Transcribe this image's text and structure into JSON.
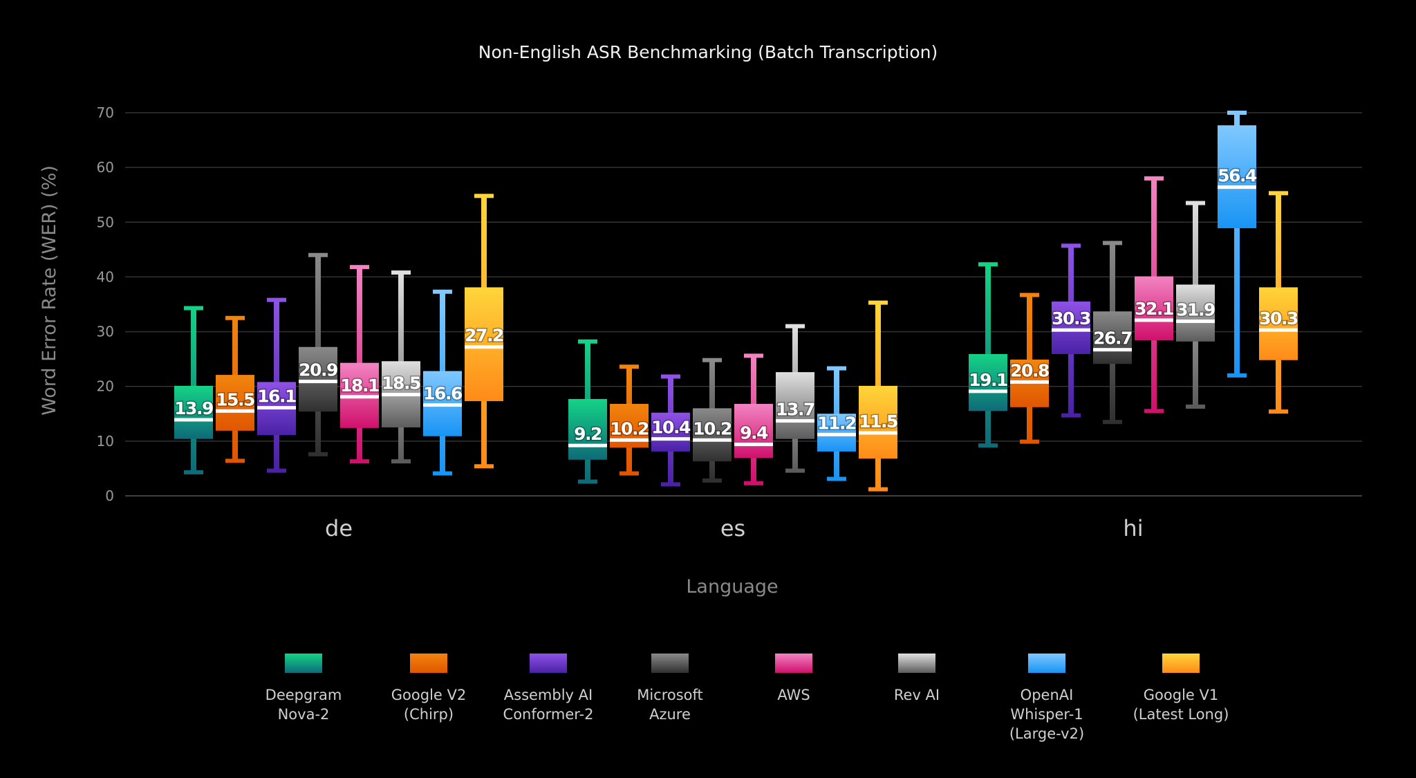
{
  "chart_data": {
    "type": "boxplot",
    "title": "Non-English ASR Benchmarking (Batch Transcription)",
    "xlabel": "Language",
    "ylabel": "Word Error Rate (WER) (%)",
    "ylim": [
      0,
      70
    ],
    "yticks": [
      0,
      10,
      20,
      30,
      40,
      50,
      60,
      70
    ],
    "grid": true,
    "legend_position": "bottom",
    "categories": [
      "de",
      "es",
      "hi"
    ],
    "series": [
      {
        "name": "Deepgram Nova-2",
        "legend_lines": [
          "Deepgram",
          "Nova-2"
        ],
        "colors": [
          "#14d386",
          "#0e6b78"
        ],
        "boxes": [
          {
            "low": 4.3,
            "q1": 10.4,
            "median": 13.9,
            "q3": 20.1,
            "high": 34.3
          },
          {
            "low": 2.6,
            "q1": 6.6,
            "median": 9.2,
            "q3": 17.7,
            "high": 28.2
          },
          {
            "low": 9.2,
            "q1": 15.5,
            "median": 19.1,
            "q3": 25.9,
            "high": 42.3
          }
        ]
      },
      {
        "name": "Google V2 (Chirp)",
        "legend_lines": [
          "Google V2",
          "(Chirp)"
        ],
        "colors": [
          "#f2840e",
          "#e05600"
        ],
        "boxes": [
          {
            "low": 6.4,
            "q1": 11.9,
            "median": 15.5,
            "q3": 22.1,
            "high": 32.5
          },
          {
            "low": 4.1,
            "q1": 8.8,
            "median": 10.2,
            "q3": 16.8,
            "high": 23.6
          },
          {
            "low": 9.9,
            "q1": 16.2,
            "median": 20.8,
            "q3": 24.9,
            "high": 36.7
          }
        ]
      },
      {
        "name": "Assembly AI Conformer-2",
        "legend_lines": [
          "Assembly AI",
          "Conformer-2"
        ],
        "colors": [
          "#8f52e6",
          "#4a22a6"
        ],
        "boxes": [
          {
            "low": 4.6,
            "q1": 11.1,
            "median": 16.1,
            "q3": 20.8,
            "high": 35.8
          },
          {
            "low": 2.1,
            "q1": 8.1,
            "median": 10.4,
            "q3": 15.2,
            "high": 21.8
          },
          {
            "low": 14.7,
            "q1": 25.9,
            "median": 30.3,
            "q3": 35.5,
            "high": 45.7
          }
        ]
      },
      {
        "name": "Microsoft Azure",
        "legend_lines": [
          "Microsoft",
          "Azure"
        ],
        "colors": [
          "#8a8a8a",
          "#303030"
        ],
        "boxes": [
          {
            "low": 7.6,
            "q1": 15.4,
            "median": 20.9,
            "q3": 27.2,
            "high": 44.0
          },
          {
            "low": 2.8,
            "q1": 6.3,
            "median": 10.2,
            "q3": 16.0,
            "high": 24.8
          },
          {
            "low": 13.5,
            "q1": 24.1,
            "median": 26.7,
            "q3": 33.7,
            "high": 46.2
          }
        ]
      },
      {
        "name": "AWS",
        "legend_lines": [
          "AWS"
        ],
        "colors": [
          "#f284c2",
          "#d0106c"
        ],
        "boxes": [
          {
            "low": 6.3,
            "q1": 12.4,
            "median": 18.1,
            "q3": 24.3,
            "high": 41.8
          },
          {
            "low": 2.3,
            "q1": 6.9,
            "median": 9.4,
            "q3": 16.8,
            "high": 25.6
          },
          {
            "low": 15.5,
            "q1": 28.4,
            "median": 32.1,
            "q3": 40.1,
            "high": 58.0
          }
        ]
      },
      {
        "name": "Rev AI",
        "legend_lines": [
          "Rev AI"
        ],
        "colors": [
          "#e0e0e0",
          "#5c5c5c"
        ],
        "boxes": [
          {
            "low": 6.3,
            "q1": 12.5,
            "median": 18.5,
            "q3": 24.6,
            "high": 40.8
          },
          {
            "low": 4.6,
            "q1": 10.4,
            "median": 13.7,
            "q3": 22.6,
            "high": 31.0
          },
          {
            "low": 16.3,
            "q1": 28.2,
            "median": 31.9,
            "q3": 38.6,
            "high": 53.5
          }
        ]
      },
      {
        "name": "OpenAI Whisper-1 (Large-v2)",
        "legend_lines": [
          "OpenAI",
          "Whisper-1",
          "(Large-v2)"
        ],
        "colors": [
          "#80c8ff",
          "#1894f4"
        ],
        "boxes": [
          {
            "low": 4.1,
            "q1": 10.9,
            "median": 16.6,
            "q3": 22.8,
            "high": 37.3
          },
          {
            "low": 3.1,
            "q1": 8.1,
            "median": 11.2,
            "q3": 15.0,
            "high": 23.3
          },
          {
            "low": 22.0,
            "q1": 48.9,
            "median": 56.4,
            "q3": 67.7,
            "high": 70.0
          }
        ]
      },
      {
        "name": "Google V1 (Latest Long)",
        "legend_lines": [
          "Google V1",
          "(Latest Long)"
        ],
        "colors": [
          "#ffd53a",
          "#ff8a18"
        ],
        "boxes": [
          {
            "low": 5.4,
            "q1": 17.3,
            "median": 27.2,
            "q3": 38.1,
            "high": 54.8
          },
          {
            "low": 1.2,
            "q1": 6.8,
            "median": 11.5,
            "q3": 20.1,
            "high": 35.3
          },
          {
            "low": 15.4,
            "q1": 24.8,
            "median": 30.3,
            "q3": 38.1,
            "high": 55.3
          }
        ]
      }
    ]
  }
}
